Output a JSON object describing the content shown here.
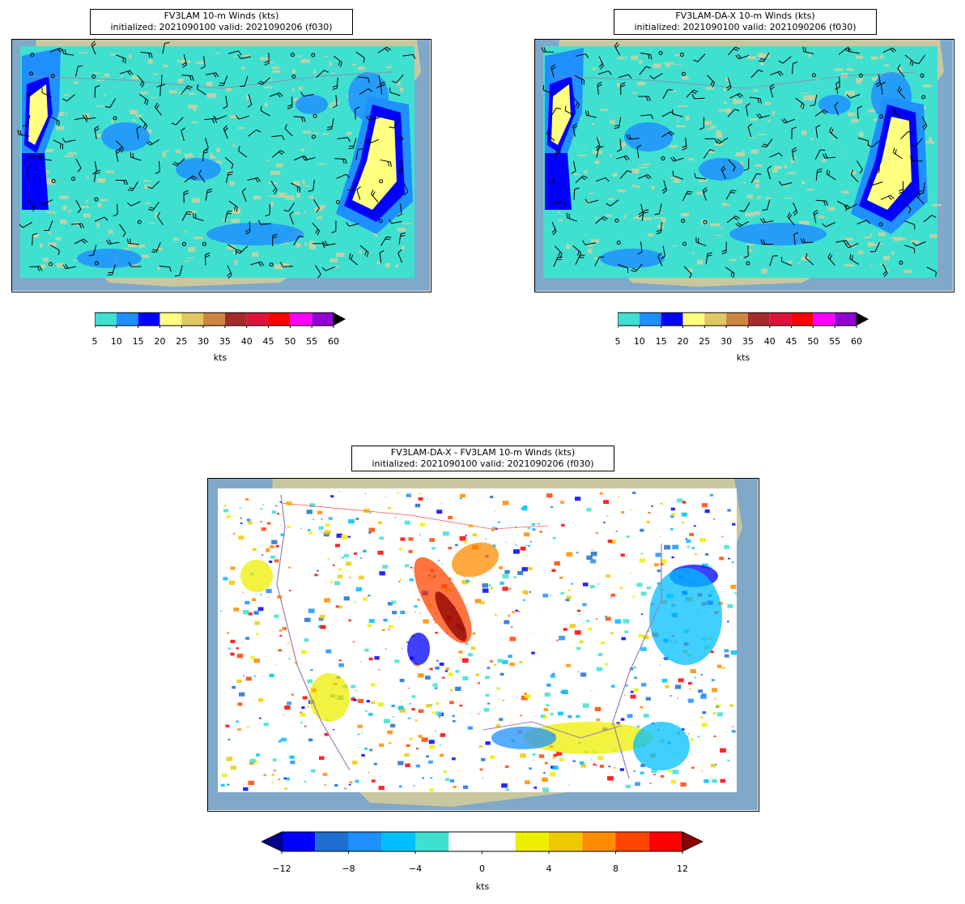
{
  "panels": [
    {
      "title_line1": "FV3LAM 10-m Winds (kts)",
      "title_line2": "initialized: 2021090100 valid: 2021090206 (f030)"
    },
    {
      "title_line1": "FV3LAM-DA-X 10-m Winds (kts)",
      "title_line2": "initialized: 2021090100 valid: 2021090206 (f030)"
    },
    {
      "title_line1": "FV3LAM-DA-X - FV3LAM 10-m Winds (kts)",
      "title_line2": "initialized: 2021090100 valid: 2021090206 (f030)"
    }
  ],
  "wind_colorbar": {
    "ticks": [
      "5",
      "10",
      "15",
      "20",
      "25",
      "30",
      "35",
      "40",
      "45",
      "50",
      "55",
      "60"
    ],
    "colors": [
      "#40e0d0",
      "#1e90ff",
      "#0000ff",
      "#ffff80",
      "#e0c860",
      "#cd853f",
      "#a52a2a",
      "#dc143c",
      "#ff0000",
      "#ff00ff",
      "#9400d3"
    ],
    "extend": "max",
    "unit": "kts"
  },
  "diff_colorbar": {
    "ticks": [
      "−12",
      "−8",
      "−4",
      "0",
      "4",
      "8",
      "12"
    ],
    "colors": [
      "#0000ff",
      "#1e6fcf",
      "#1e90ff",
      "#00bfff",
      "#40e0d0",
      "#ffffff",
      "#ffffff",
      "#eeee00",
      "#eec900",
      "#ff8c00",
      "#ff4500",
      "#ff0000"
    ],
    "extend_low_color": "#00008b",
    "extend_high_color": "#8b0000",
    "unit": "kts"
  },
  "colors": {
    "ocean": "#7fa8c9",
    "land": "#c9c7a0",
    "wind_base": "#40e0d0"
  }
}
